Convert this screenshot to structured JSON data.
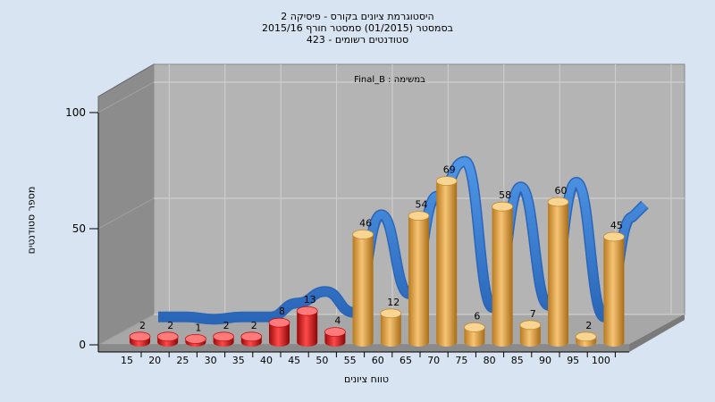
{
  "chart_data": {
    "type": "bar",
    "title_lines": [
      "היסטוגרמת ציונים בקורס - פיסיקה 2",
      "בסמסטר  (01/2015)  סמסטר חורף 2015/16",
      "סטודנטים רשומים - 423"
    ],
    "annotation": "Final_B : במשימה",
    "xlabel": "טווח ציונים",
    "ylabel": "מספר סטודנטים",
    "ylim": [
      0,
      100
    ],
    "yticks": [
      0,
      50,
      100
    ],
    "categories": [
      "15",
      "20",
      "25",
      "30",
      "35",
      "40",
      "45",
      "50",
      "55",
      "60",
      "65",
      "70",
      "75",
      "80",
      "85",
      "90",
      "95",
      "100"
    ],
    "values": [
      2,
      2,
      1,
      2,
      2,
      8,
      13,
      4,
      46,
      12,
      54,
      69,
      6,
      58,
      7,
      60,
      2,
      45
    ],
    "fail_threshold_index": 8,
    "colors": {
      "fail": "#e01818",
      "pass": "#e7a63f",
      "ribbon": "#3a7fd0",
      "wall": "#8c8c8c",
      "plot": "#b4b4b4"
    }
  }
}
